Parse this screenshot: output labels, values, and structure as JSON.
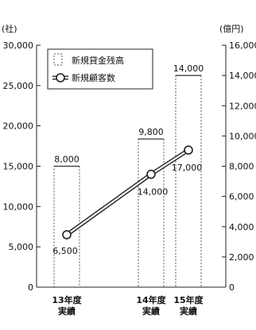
{
  "chart_data": {
    "type": "bar",
    "categories": [
      [
        "13年度",
        "実績"
      ],
      [
        "14年度",
        "実績"
      ],
      [
        "15年度",
        "実績"
      ]
    ],
    "series": [
      {
        "name": "新規貸金残高",
        "type": "bar",
        "axis": "right",
        "values": [
          8000,
          9800,
          14000
        ],
        "labels": [
          "8,000",
          "9,800",
          "14,000"
        ]
      },
      {
        "name": "新規顧客数",
        "type": "line",
        "axis": "left",
        "values": [
          6500,
          14000,
          17000
        ],
        "labels": [
          "6,500",
          "14,000",
          "17,000"
        ]
      }
    ],
    "left_axis": {
      "unit_label": "(社)",
      "ylim": [
        0,
        30000
      ],
      "ticks": [
        0,
        5000,
        10000,
        15000,
        20000,
        25000,
        30000
      ],
      "tick_labels": [
        "0",
        "5,000",
        "10,000",
        "15,000",
        "20,000",
        "25,000",
        "30,000"
      ]
    },
    "right_axis": {
      "unit_label": "(億円)",
      "ylim": [
        0,
        16000
      ],
      "ticks": [
        0,
        2000,
        4000,
        6000,
        8000,
        10000,
        12000,
        14000,
        16000
      ],
      "tick_labels": [
        "0",
        "2,000",
        "4,000",
        "6,000",
        "8,000",
        "10,000",
        "12,000",
        "14,000",
        "16,000"
      ]
    },
    "grid": false,
    "legend": "top-left"
  }
}
